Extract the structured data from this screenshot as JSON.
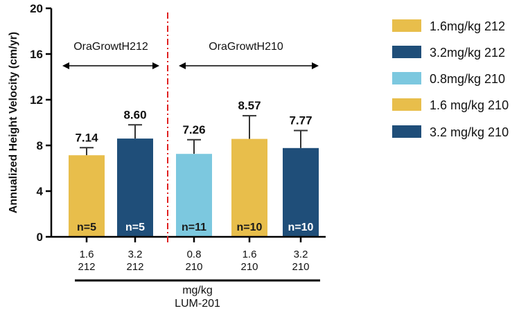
{
  "chart_data": {
    "type": "bar",
    "ylabel": "Annualized Height Velocity (cm/yr)",
    "xlabel": "mg/kg",
    "xlabel_sub": "LUM-201",
    "ylim": [
      0,
      20
    ],
    "yticks": [
      0,
      4,
      8,
      12,
      16,
      20
    ],
    "bars": [
      {
        "dose": "1.6",
        "study": "212",
        "value": 7.14,
        "value_label": "7.14",
        "err_upper": 7.8,
        "n_label": "n=5",
        "color": "#E8BE4B",
        "n_color": "#1a1a1a"
      },
      {
        "dose": "3.2",
        "study": "212",
        "value": 8.6,
        "value_label": "8.60",
        "err_upper": 9.8,
        "n_label": "n=5",
        "color": "#1F4E79",
        "n_color": "#ffffff"
      },
      {
        "dose": "0.8",
        "study": "210",
        "value": 7.26,
        "value_label": "7.26",
        "err_upper": 8.5,
        "n_label": "n=11",
        "color": "#7CC8DF",
        "n_color": "#1a1a1a"
      },
      {
        "dose": "1.6",
        "study": "210",
        "value": 8.57,
        "value_label": "8.57",
        "err_upper": 10.6,
        "n_label": "n=10",
        "color": "#E8BE4B",
        "n_color": "#1a1a1a"
      },
      {
        "dose": "3.2",
        "study": "210",
        "value": 7.77,
        "value_label": "7.77",
        "err_upper": 9.3,
        "n_label": "n=10",
        "color": "#1F4E79",
        "n_color": "#ffffff"
      }
    ],
    "groups": [
      {
        "label": "OraGrowtH212"
      },
      {
        "label": "OraGrowtH210"
      }
    ],
    "legend": [
      {
        "label": "1.6mg/kg 212",
        "color": "#E8BE4B"
      },
      {
        "label": "3.2mg/kg 212",
        "color": "#1F4E79"
      },
      {
        "label": "0.8mg/kg 210",
        "color": "#7CC8DF"
      },
      {
        "label": "1.6 mg/kg 210",
        "color": "#E8BE4B"
      },
      {
        "label": "3.2 mg/kg 210",
        "color": "#1F4E79"
      }
    ],
    "divider_color": "#E02020",
    "legend_position": "right"
  }
}
